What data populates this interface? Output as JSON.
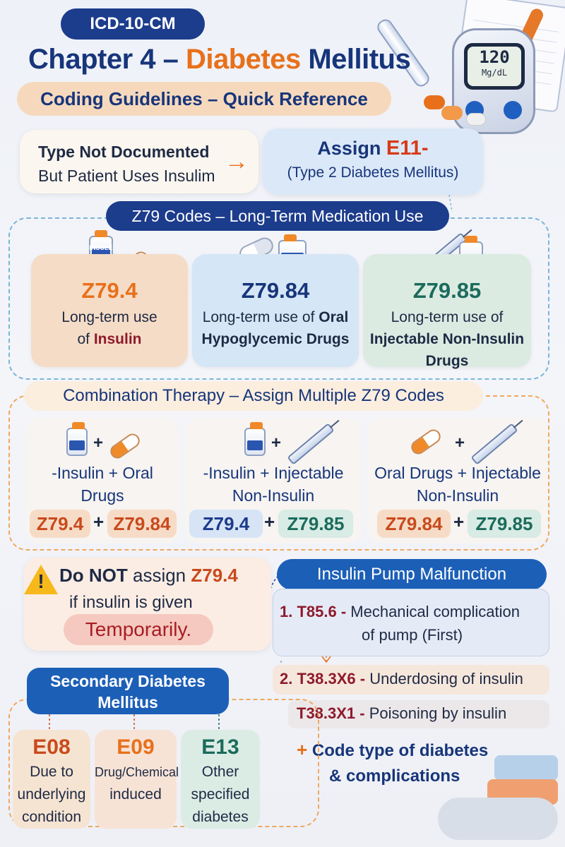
{
  "header": {
    "badge": "ICD-10-CM",
    "title_part1": "Chapter 4 – ",
    "title_part2": "Diabetes",
    "title_part3": " Mellitus",
    "subtitle": "Coding Guidelines – Quick Reference",
    "meter_value": "120",
    "meter_unit": "Mg/dL"
  },
  "insulin_rule": {
    "left_line1": "Type Not Documented",
    "left_line2": "But Patient Uses Insulim",
    "right_prefix": "Assign ",
    "right_code": "E11-",
    "right_desc": "(Type 2 Diabetes Mellitus)"
  },
  "z79": {
    "header": "Z79 Codes – Long-Term Medication Use",
    "vial_label": "INSULE",
    "cards": [
      {
        "code": "Z79.4",
        "line1": "Long-term use",
        "line2_pre": "of ",
        "line2_bold": "Insulin",
        "line3": ""
      },
      {
        "code": "Z79.84",
        "line1_pre": "Long-term use of ",
        "line1_bold": "Oral",
        "line2_bold": "Hypoglycemic Drugs"
      },
      {
        "code": "Z79.85",
        "line1": "Long-term use of",
        "line2_bold": "Injectable Non-Insulin",
        "line3_bold": "Drugs"
      }
    ]
  },
  "combination": {
    "header": "Combination Therapy – Assign Multiple Z79 Codes",
    "plus": "+",
    "items": [
      {
        "line1": "-Insulin + Oral",
        "line2": "Drugs",
        "code_a": "Z79.4",
        "code_b": "Z79.84"
      },
      {
        "line1": "-Insulin + Injectable",
        "line2": "Non-Insulin",
        "code_a": "Z79.4",
        "code_b": "Z79.85"
      },
      {
        "line1": "Oral Drugs + Injectable",
        "line2": "Non-Insulin",
        "code_a": "Z79.84",
        "code_b": "Z79.85"
      }
    ]
  },
  "warning": {
    "icon_glyph": "!",
    "line1_bold": "Do NOT",
    "line1_plain": " assign ",
    "line1_code": "Z79.4",
    "line2": "if insulin is given",
    "pill": "Temporarily."
  },
  "pump": {
    "header": "Insulin Pump Malfunction",
    "step1_code": "1. T85.6 -",
    "step1_text_a": " Mechanical complication",
    "step1_text_b": "of pump (First)",
    "step2_code": "2. T38.3X6 -",
    "step2_text": " Underdosing of insulin",
    "step3_code": "T38.3X1 -",
    "step3_text": " Poisoning by insulin",
    "note_plus": "+",
    "note_line1": " Code type of diabetes",
    "note_line2": "& complications"
  },
  "secondary": {
    "header_line1": "Secondary Diabetes",
    "header_line2": "Mellitus",
    "cards": [
      {
        "code": "E08",
        "line1": "Due to",
        "line2": "underlying",
        "line3": "condition"
      },
      {
        "code": "E09",
        "line1": "Drug/Chemical",
        "line2": "induced",
        "line3": ""
      },
      {
        "code": "E13",
        "line1": "Other",
        "line2": "specified",
        "line3": "diabetes"
      }
    ]
  },
  "colors": {
    "navy": "#1c3c8c",
    "orange": "#e8701a",
    "maroon": "#8e1a2c",
    "teal": "#1b6b5c",
    "red": "#c94a1c"
  }
}
